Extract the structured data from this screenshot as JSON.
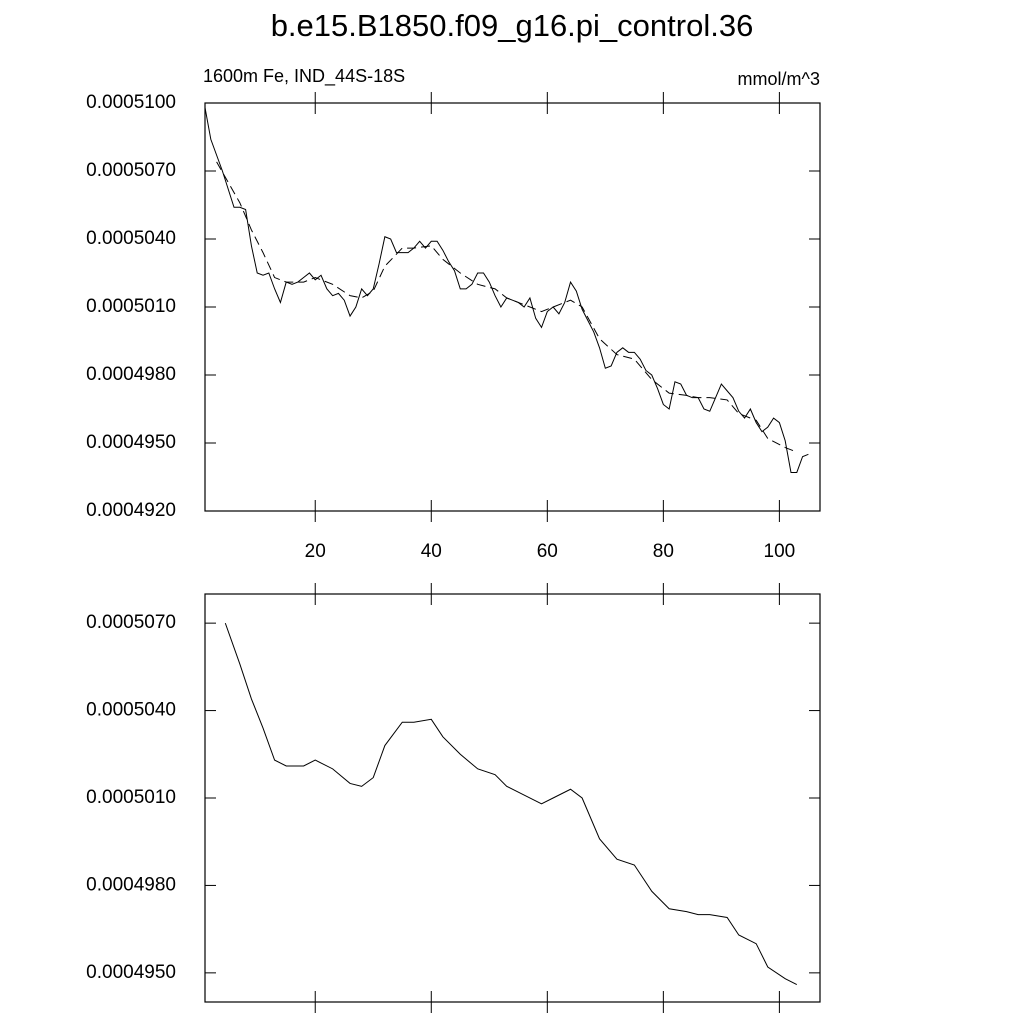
{
  "chart_data": [
    {
      "type": "line",
      "title": "b.e15.B1850.f09_g16.pi_control.36",
      "left_string": "1600m Fe, IND_44S-18S",
      "right_string": "mmol/m^3",
      "xlim": [
        1,
        107
      ],
      "xticks": [
        20,
        40,
        60,
        80,
        100
      ],
      "xtick_labels": true,
      "ylim": [
        0.000492,
        0.00051
      ],
      "yticks": [
        {
          "value": 0.00051,
          "label": "0.0005100"
        },
        {
          "value": 0.000507,
          "label": "0.0005070"
        },
        {
          "value": 0.000504,
          "label": "0.0005040"
        },
        {
          "value": 0.000501,
          "label": "0.0005010"
        },
        {
          "value": 0.000498,
          "label": "0.0004980"
        },
        {
          "value": 0.000495,
          "label": "0.0004950"
        },
        {
          "value": 0.000492,
          "label": "0.0004920"
        }
      ],
      "series": [
        {
          "color": "#000000",
          "style": "solid",
          "x": [
            1,
            2,
            3,
            4,
            5,
            6,
            7,
            8,
            9,
            10,
            11,
            12,
            13,
            14,
            15,
            16,
            17,
            18,
            19,
            20,
            21,
            22,
            23,
            24,
            25,
            26,
            27,
            28,
            29,
            30,
            31,
            32,
            33,
            34,
            35,
            36,
            37,
            38,
            39,
            40,
            41,
            42,
            43,
            44,
            45,
            46,
            47,
            48,
            49,
            50,
            51,
            52,
            53,
            54,
            55,
            56,
            57,
            58,
            59,
            60,
            61,
            62,
            63,
            64,
            65,
            66,
            67,
            68,
            69,
            70,
            71,
            72,
            73,
            74,
            75,
            76,
            77,
            78,
            79,
            80,
            81,
            82,
            83,
            84,
            85,
            86,
            87,
            88,
            89,
            90,
            91,
            92,
            93,
            94,
            95,
            96,
            97,
            98,
            99,
            100,
            101,
            102,
            103,
            104,
            105
          ],
          "values": [
            0.0005098,
            0.0005084,
            0.0005077,
            0.000507,
            0.0005062,
            0.0005054,
            0.0005054,
            0.0005053,
            0.0005037,
            0.0005025,
            0.0005024,
            0.0005025,
            0.0005018,
            0.0005012,
            0.0005021,
            0.000502,
            0.0005021,
            0.0005023,
            0.0005025,
            0.0005022,
            0.0005024,
            0.0005018,
            0.0005015,
            0.0005016,
            0.0005013,
            0.0005006,
            0.000501,
            0.0005018,
            0.0005015,
            0.0005018,
            0.0005029,
            0.0005041,
            0.000504,
            0.0005034,
            0.0005034,
            0.0005034,
            0.0005036,
            0.0005039,
            0.0005036,
            0.0005039,
            0.0005039,
            0.0005035,
            0.000503,
            0.0005026,
            0.0005018,
            0.0005018,
            0.000502,
            0.0005025,
            0.0005025,
            0.0005021,
            0.0005015,
            0.000501,
            0.0005014,
            0.0005013,
            0.0005012,
            0.000501,
            0.0005014,
            0.0005005,
            0.0005001,
            0.0005008,
            0.000501,
            0.0005007,
            0.0005012,
            0.0005021,
            0.0005017,
            0.0005009,
            0.0005004,
            0.0004999,
            0.0004992,
            0.0004983,
            0.0004984,
            0.000499,
            0.0004992,
            0.000499,
            0.000499,
            0.0004987,
            0.0004982,
            0.000498,
            0.0004974,
            0.0004967,
            0.0004965,
            0.0004977,
            0.0004976,
            0.0004971,
            0.000497,
            0.000497,
            0.0004965,
            0.0004964,
            0.000497,
            0.0004976,
            0.0004973,
            0.000497,
            0.0004964,
            0.0004961,
            0.0004965,
            0.0004959,
            0.0004955,
            0.0004957,
            0.0004961,
            0.0004959,
            0.0004951,
            0.0004937,
            0.0004937,
            0.0004944,
            0.0004945
          ]
        },
        {
          "color": "#000000",
          "style": "dashed",
          "x": [
            3,
            5,
            7,
            9,
            11,
            13,
            15,
            18,
            20,
            23,
            26,
            28,
            30,
            32,
            35,
            37,
            40,
            42,
            45,
            48,
            51,
            53,
            56,
            59,
            61,
            64,
            66,
            69,
            72,
            75,
            78,
            81,
            84,
            86,
            88,
            91,
            93,
            96,
            98,
            101,
            103
          ],
          "values": [
            0.0005074,
            0.0005065,
            0.0005056,
            0.0005044,
            0.0005034,
            0.0005023,
            0.0005021,
            0.0005021,
            0.0005023,
            0.000502,
            0.0005015,
            0.0005014,
            0.0005017,
            0.0005028,
            0.0005036,
            0.0005036,
            0.0005037,
            0.0005031,
            0.0005025,
            0.000502,
            0.0005018,
            0.0005014,
            0.0005011,
            0.0005008,
            0.000501,
            0.0005013,
            0.000501,
            0.0004996,
            0.0004989,
            0.0004987,
            0.0004978,
            0.0004972,
            0.0004971,
            0.000497,
            0.000497,
            0.0004969,
            0.0004963,
            0.000496,
            0.0004952,
            0.0004948,
            0.0004946
          ]
        }
      ]
    },
    {
      "type": "line",
      "xlim": [
        1,
        107
      ],
      "xticks": [
        20,
        40,
        60,
        80,
        100
      ],
      "xtick_labels": false,
      "ylim": [
        0.000494,
        0.000508
      ],
      "yticks": [
        {
          "value": 0.000507,
          "label": "0.0005070"
        },
        {
          "value": 0.000504,
          "label": "0.0005040"
        },
        {
          "value": 0.000501,
          "label": "0.0005010"
        },
        {
          "value": 0.000498,
          "label": "0.0004980"
        },
        {
          "value": 0.000495,
          "label": "0.0004950"
        }
      ],
      "series": [
        {
          "color": "#000000",
          "style": "solid",
          "x": [
            4.5,
            7,
            9,
            11,
            13,
            15,
            18,
            20,
            23,
            26,
            28,
            30,
            32,
            35,
            37,
            40,
            42,
            45,
            48,
            51,
            53,
            56,
            59,
            61,
            64,
            66,
            69,
            72,
            75,
            78,
            81,
            84,
            86,
            88,
            91,
            93,
            96,
            98,
            101,
            103
          ],
          "values": [
            0.000507,
            0.0005056,
            0.0005044,
            0.0005034,
            0.0005023,
            0.0005021,
            0.0005021,
            0.0005023,
            0.000502,
            0.0005015,
            0.0005014,
            0.0005017,
            0.0005028,
            0.0005036,
            0.0005036,
            0.0005037,
            0.0005031,
            0.0005025,
            0.000502,
            0.0005018,
            0.0005014,
            0.0005011,
            0.0005008,
            0.000501,
            0.0005013,
            0.000501,
            0.0004996,
            0.0004989,
            0.0004987,
            0.0004978,
            0.0004972,
            0.0004971,
            0.000497,
            0.000497,
            0.0004969,
            0.0004963,
            0.000496,
            0.0004952,
            0.0004948,
            0.0004946
          ]
        }
      ]
    }
  ]
}
